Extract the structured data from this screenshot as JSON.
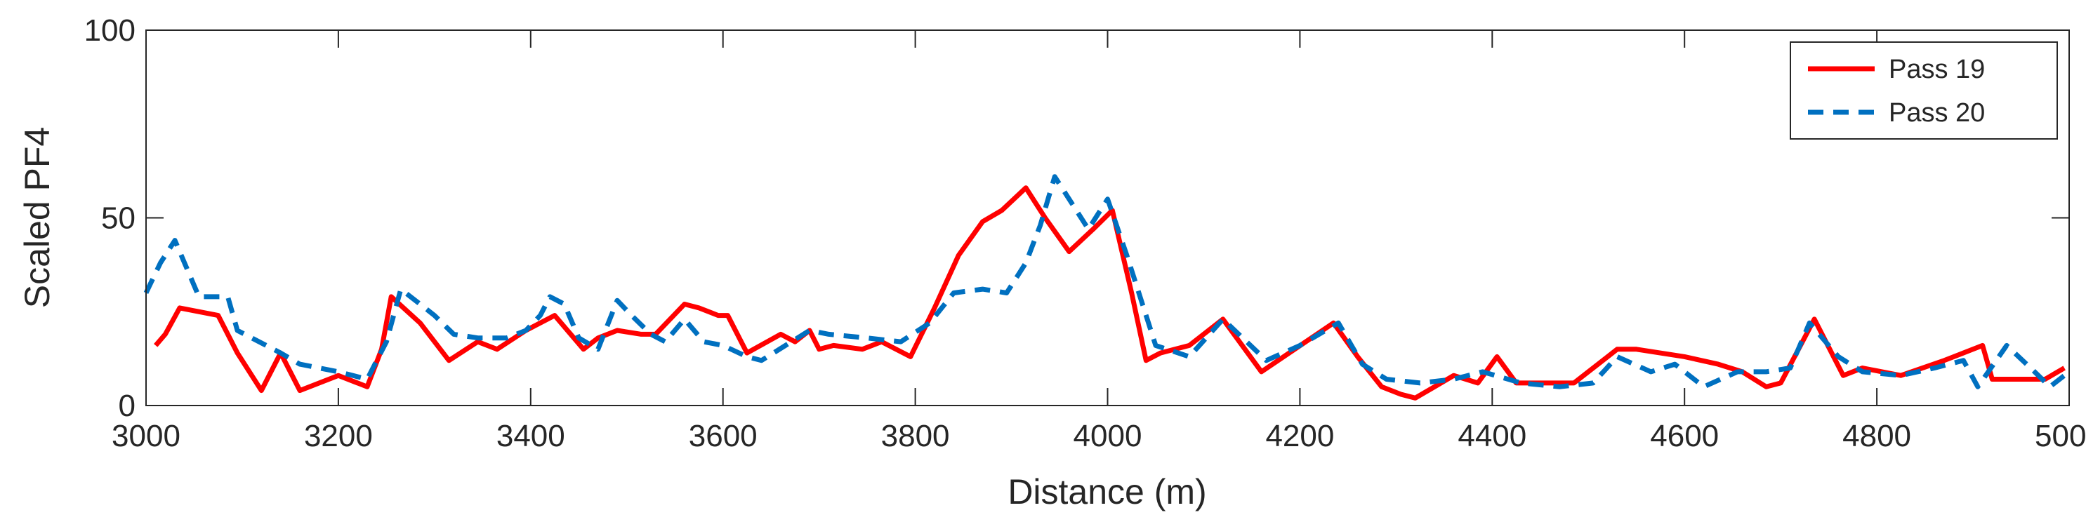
{
  "chart_data": {
    "type": "line",
    "xlabel": "Distance (m)",
    "ylabel": "Scaled PF4",
    "xlim": [
      3000,
      5000
    ],
    "ylim": [
      0,
      100
    ],
    "xticks": [
      "3000",
      "3200",
      "3400",
      "3600",
      "3800",
      "4000",
      "4200",
      "4400",
      "4600",
      "4800",
      "5000"
    ],
    "yticks": [
      "0",
      "50",
      "100"
    ],
    "grid": false,
    "legend_position": "top-right",
    "series": [
      {
        "name": "Pass 19",
        "color": "#ff0000",
        "style": "solid",
        "x": [
          3010,
          3020,
          3035,
          3075,
          3095,
          3120,
          3140,
          3160,
          3200,
          3230,
          3245,
          3255,
          3285,
          3315,
          3345,
          3365,
          3395,
          3425,
          3455,
          3470,
          3490,
          3515,
          3530,
          3560,
          3575,
          3595,
          3605,
          3625,
          3660,
          3675,
          3690,
          3700,
          3715,
          3745,
          3765,
          3795,
          3820,
          3845,
          3870,
          3890,
          3915,
          3935,
          3960,
          3985,
          4005,
          4025,
          4040,
          4055,
          4085,
          4120,
          4160,
          4235,
          4260,
          4285,
          4305,
          4320,
          4340,
          4360,
          4385,
          4405,
          4425,
          4445,
          4485,
          4530,
          4550,
          4600,
          4635,
          4660,
          4685,
          4700,
          4735,
          4765,
          4785,
          4825,
          4870,
          4910,
          4920,
          4945,
          4975,
          4995
        ],
        "values": [
          16,
          19,
          26,
          24,
          14,
          4,
          14,
          4,
          8,
          5,
          15,
          29,
          22,
          12,
          17,
          15,
          20,
          24,
          15,
          18,
          20,
          19,
          19,
          27,
          26,
          24,
          24,
          14,
          19,
          17,
          20,
          15,
          16,
          15,
          17,
          13,
          26,
          40,
          49,
          52,
          58,
          50,
          41,
          47,
          52,
          30,
          12,
          14,
          16,
          23,
          9,
          22,
          13,
          5,
          3,
          2,
          5,
          8,
          6,
          13,
          6,
          6,
          6,
          15,
          15,
          13,
          11,
          9,
          5,
          6,
          23,
          8,
          10,
          8,
          12,
          16,
          7,
          7,
          7,
          10
        ]
      },
      {
        "name": "Pass 20",
        "color": "#0070c0",
        "style": "dashed",
        "x": [
          3000,
          3015,
          3030,
          3055,
          3085,
          3095,
          3140,
          3160,
          3200,
          3230,
          3250,
          3265,
          3300,
          3320,
          3345,
          3375,
          3395,
          3410,
          3420,
          3435,
          3450,
          3470,
          3490,
          3505,
          3525,
          3540,
          3560,
          3580,
          3600,
          3625,
          3640,
          3665,
          3690,
          3710,
          3750,
          3785,
          3815,
          3840,
          3870,
          3895,
          3915,
          3930,
          3945,
          3980,
          4000,
          4020,
          4050,
          4085,
          4120,
          4165,
          4200,
          4240,
          4265,
          4290,
          4325,
          4360,
          4390,
          4430,
          4470,
          4505,
          4530,
          4565,
          4590,
          4620,
          4655,
          4685,
          4710,
          4730,
          4760,
          4785,
          4825,
          4860,
          4890,
          4905,
          4935,
          4960,
          4980,
          4995
        ],
        "values": [
          30,
          38,
          44,
          29,
          29,
          20,
          14,
          11,
          9,
          7,
          17,
          31,
          24,
          19,
          18,
          18,
          20,
          24,
          29,
          27,
          18,
          15,
          28,
          24,
          19,
          17,
          23,
          17,
          16,
          13,
          12,
          16,
          20,
          19,
          18,
          17,
          22,
          30,
          31,
          30,
          38,
          48,
          61,
          47,
          55,
          40,
          16,
          13,
          23,
          12,
          16,
          22,
          11,
          7,
          6,
          7,
          9,
          6,
          5,
          6,
          13,
          9,
          11,
          5,
          9,
          9,
          10,
          22,
          13,
          9,
          8,
          10,
          12,
          5,
          16,
          10,
          5,
          8
        ]
      }
    ]
  }
}
